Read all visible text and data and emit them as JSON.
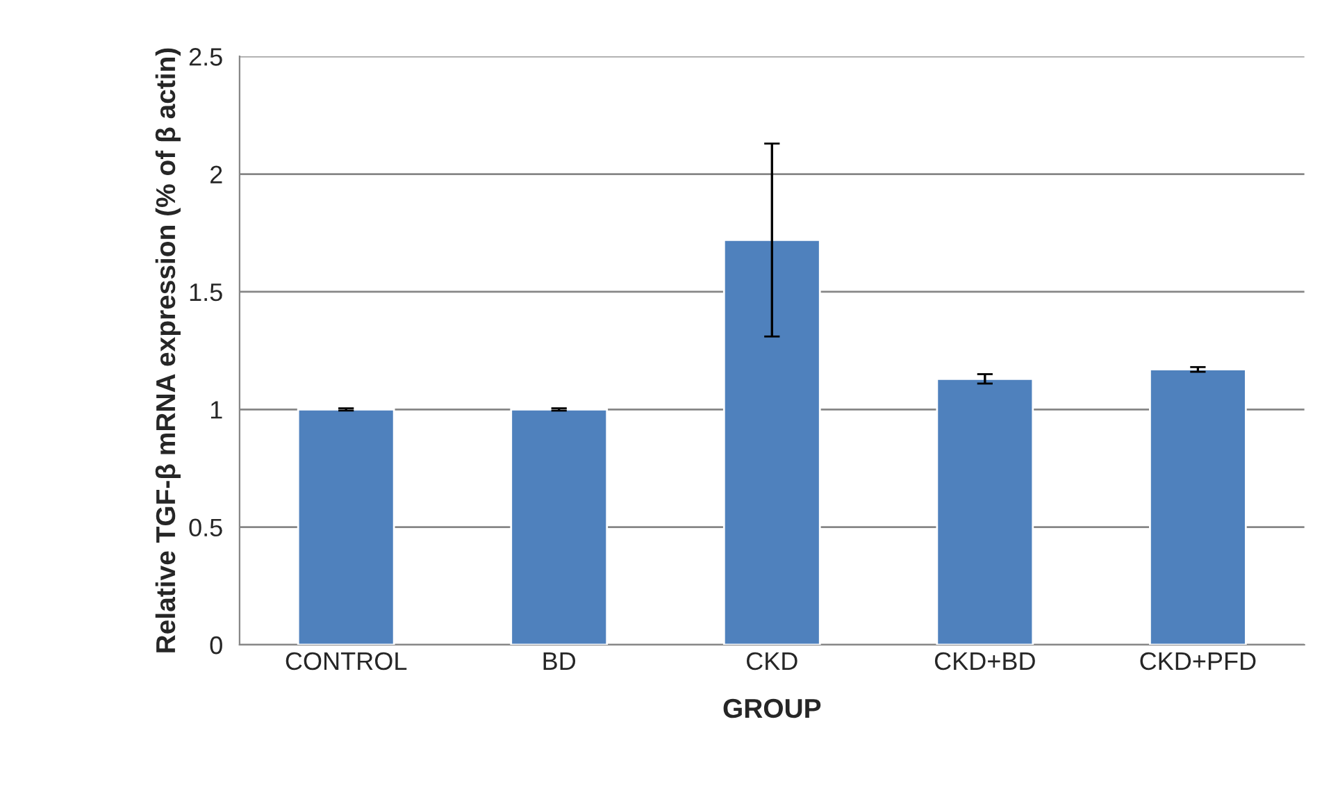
{
  "chart_data": {
    "type": "bar",
    "xlabel": "GROUP",
    "ylabel": "Relative TGF-β mRNA expression (% of β actin)",
    "categories": [
      "CONTROL",
      "BD",
      "CKD",
      "CKD+BD",
      "CKD+PFD"
    ],
    "values": [
      1.0,
      1.0,
      1.72,
      1.13,
      1.17
    ],
    "errors": [
      0.005,
      0.005,
      0.41,
      0.02,
      0.01
    ],
    "color": "#4f81bd",
    "ylim": [
      0,
      2.5
    ],
    "yticks": [
      {
        "value": 0,
        "label": "0"
      },
      {
        "value": 0.5,
        "label": "0.5"
      },
      {
        "value": 1,
        "label": "1"
      },
      {
        "value": 1.5,
        "label": "1.5"
      },
      {
        "value": 2,
        "label": "2"
      },
      {
        "value": 2.5,
        "label": "2.5"
      }
    ],
    "grid": "y"
  }
}
